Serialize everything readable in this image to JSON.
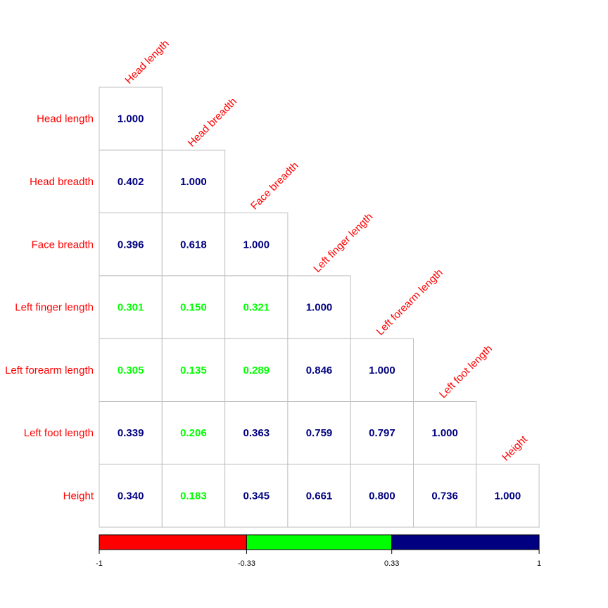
{
  "chart_data": {
    "type": "heatmap",
    "variables": [
      "Head length",
      "Head breadth",
      "Face breadth",
      "Left finger length",
      "Left forearm length",
      "Left foot length",
      "Height"
    ],
    "matrix": [
      [
        1.0
      ],
      [
        0.402,
        1.0
      ],
      [
        0.396,
        0.618,
        1.0
      ],
      [
        0.301,
        0.15,
        0.321,
        1.0
      ],
      [
        0.305,
        0.135,
        0.289,
        0.846,
        1.0
      ],
      [
        0.339,
        0.206,
        0.363,
        0.759,
        0.797,
        1.0
      ],
      [
        0.34,
        0.183,
        0.345,
        0.661,
        0.8,
        0.736,
        1.0
      ]
    ],
    "value_format": "3 decimals",
    "layout": "lower-triangle",
    "color_scale": {
      "breaks": [
        -1,
        -0.33,
        0.33,
        1
      ],
      "colors": [
        "#ff0000",
        "#00ff00",
        "#000080"
      ],
      "tick_labels": [
        "-1",
        "-0.33",
        "0.33",
        "1"
      ]
    },
    "label_color": "#ff0000",
    "grid_color": "#c0c0c0"
  }
}
